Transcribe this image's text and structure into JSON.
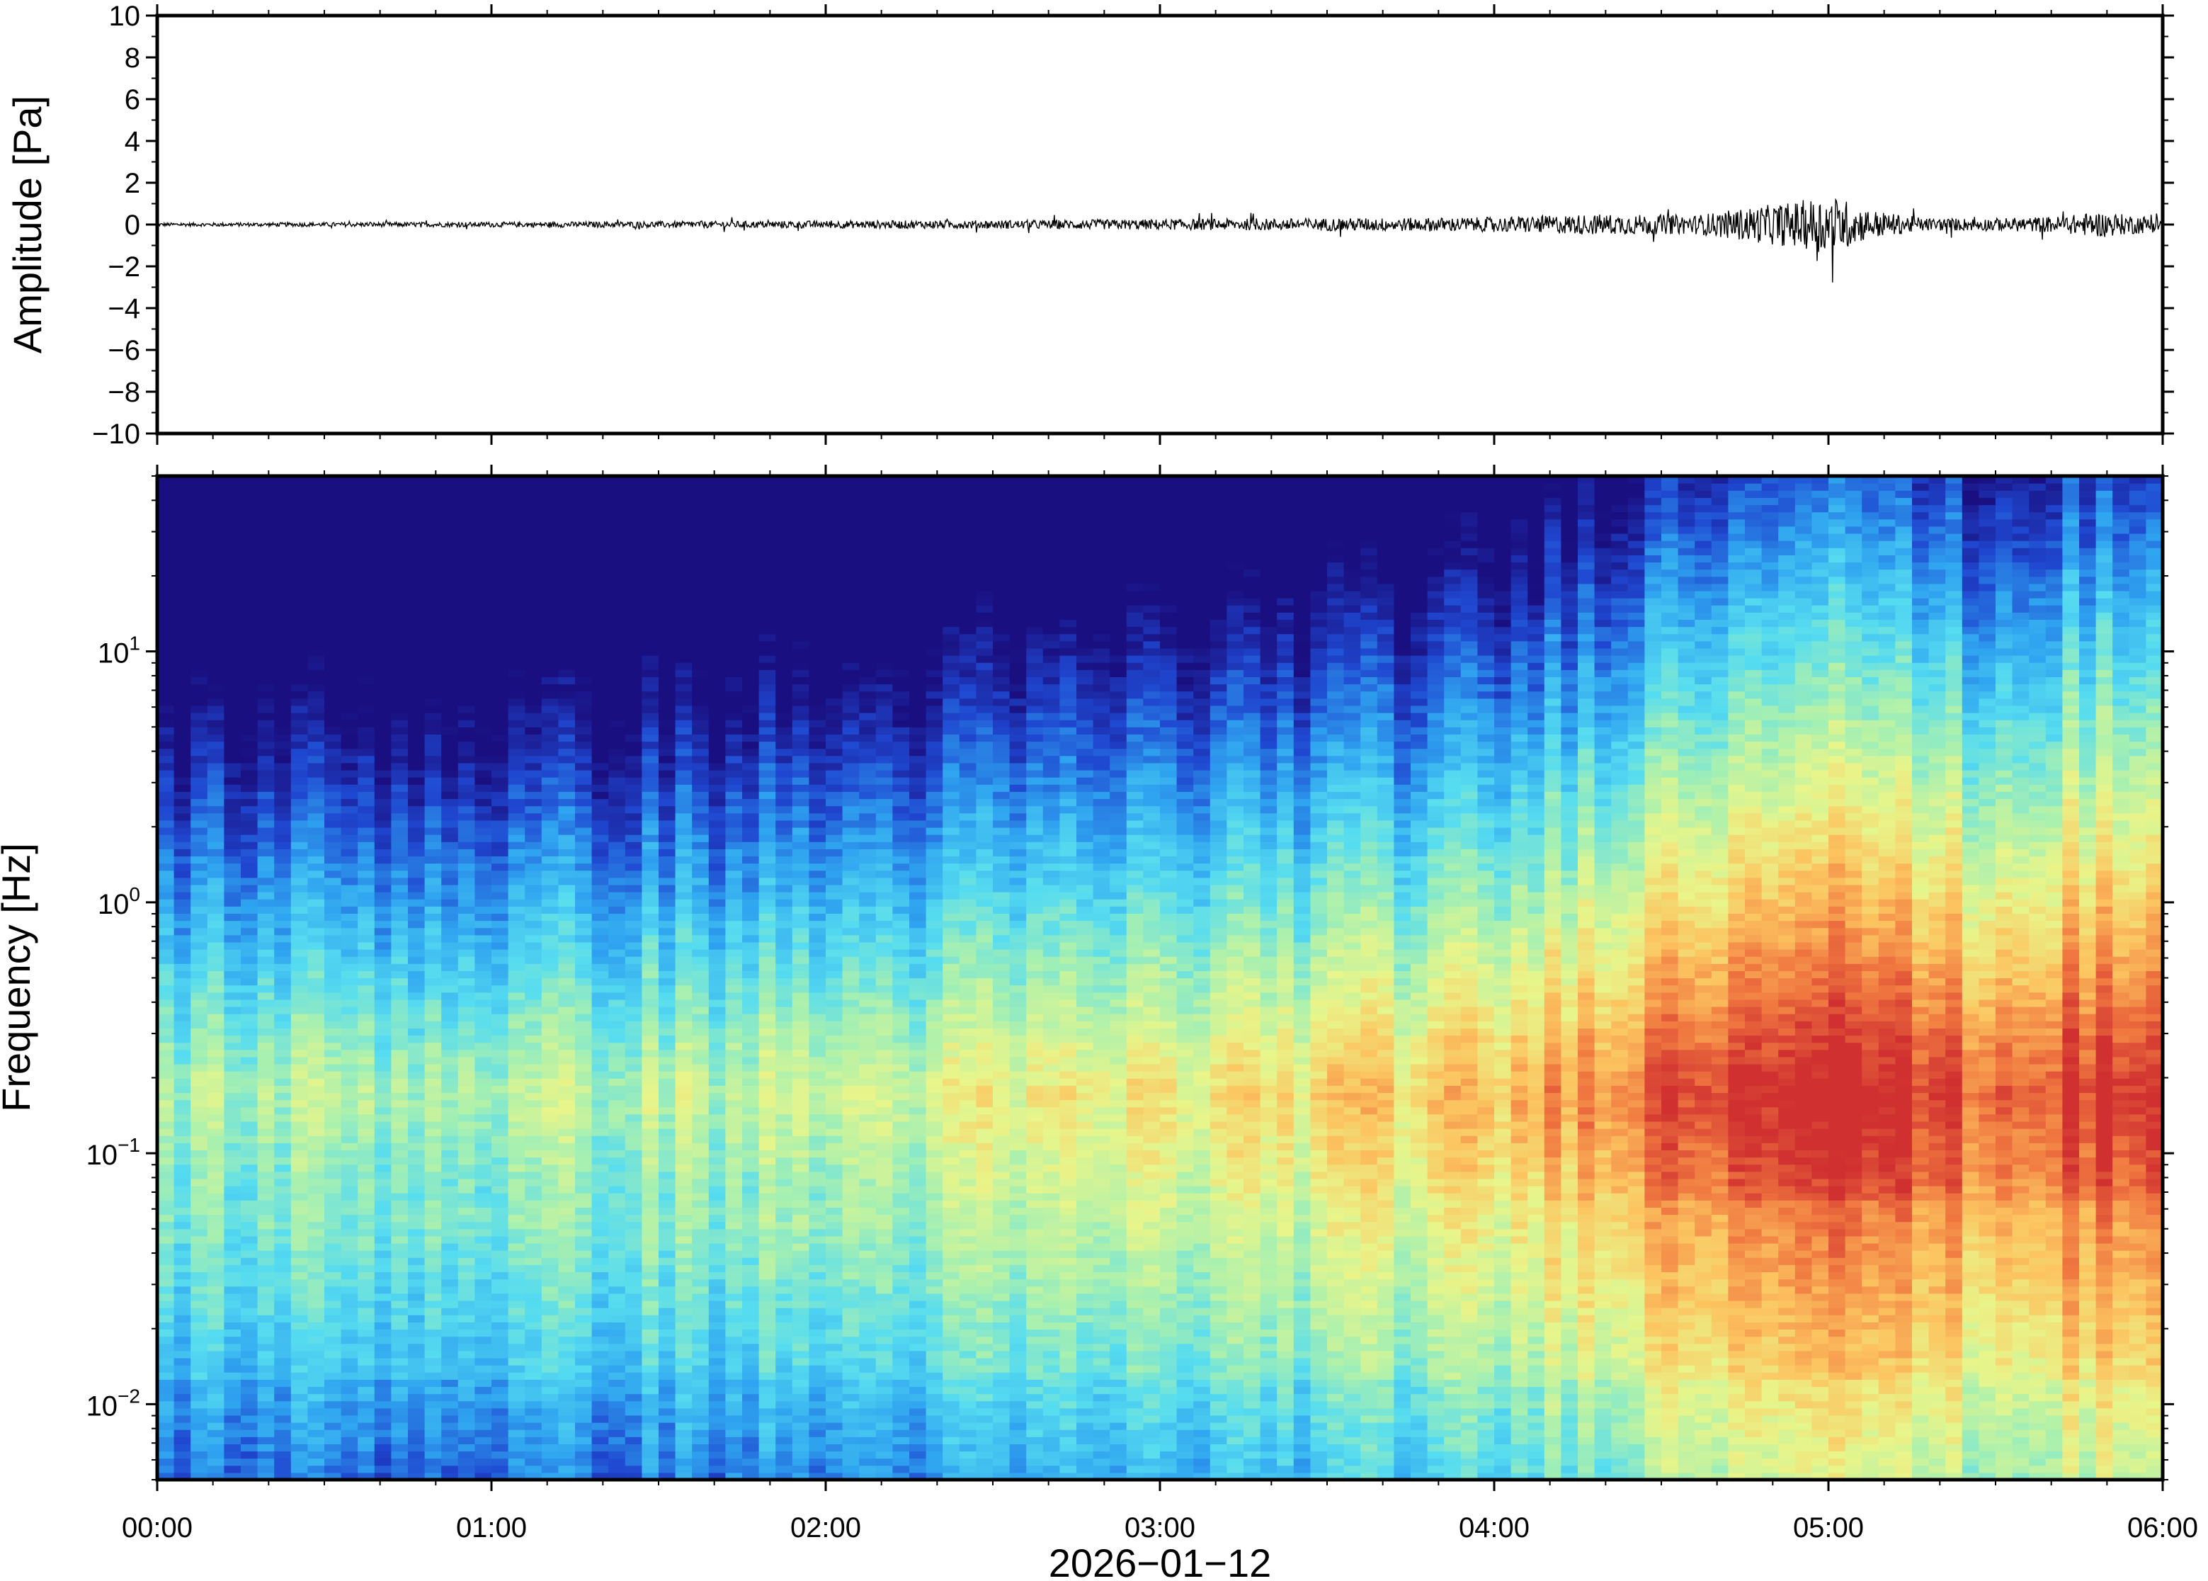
{
  "chart_data": [
    {
      "type": "line",
      "panel": "waveform",
      "ylabel": "Amplitude [Pa]",
      "ylim": [
        -10,
        10
      ],
      "yticks": [
        10,
        8,
        6,
        4,
        2,
        0,
        -2,
        -4,
        -6,
        -8,
        -10
      ],
      "ytick_labels": [
        "10",
        "8",
        "6",
        "4",
        "2",
        "0",
        "−2",
        "−4",
        "−6",
        "−8",
        "−10"
      ],
      "line_color": "#000000",
      "envelope": {
        "x_hours": [
          0.0,
          0.5,
          1.0,
          1.5,
          2.0,
          2.5,
          3.0,
          3.5,
          4.0,
          4.3,
          4.6,
          4.8,
          4.9,
          5.0,
          5.05,
          5.1,
          5.2,
          5.3,
          5.5,
          5.7,
          5.8,
          6.0
        ],
        "amplitude_pa": [
          0.08,
          0.1,
          0.12,
          0.15,
          0.18,
          0.2,
          0.25,
          0.3,
          0.35,
          0.5,
          0.45,
          0.9,
          1.1,
          1.4,
          1.2,
          0.8,
          0.5,
          0.3,
          0.3,
          0.4,
          0.6,
          0.35
        ]
      },
      "grid": false
    },
    {
      "type": "heatmap",
      "panel": "spectrogram",
      "ylabel": "Frequency [Hz]",
      "yscale": "log",
      "ylim": [
        0.005,
        50
      ],
      "yticks": [
        0.01,
        0.1,
        1,
        10
      ],
      "ytick_labels": [
        {
          "base": "10",
          "exp": "−2"
        },
        {
          "base": "10",
          "exp": "−1"
        },
        {
          "base": "10",
          "exp": "0"
        },
        {
          "base": "10",
          "exp": "1"
        }
      ],
      "xlabel": "2026−01−12",
      "xlim_hours": [
        0,
        6
      ],
      "xticks": [
        "00:00",
        "01:00",
        "02:00",
        "03:00",
        "04:00",
        "05:00",
        "06:00"
      ],
      "colormap": [
        "#1a0f80",
        "#1f47d0",
        "#2fa4f0",
        "#56dcf0",
        "#a8f0b0",
        "#e8f58a",
        "#fcc460",
        "#f07840",
        "#d03030"
      ],
      "column_time_bins": 120,
      "frequency_bins": 140,
      "description_levels": {
        "x_hours": [
          0.0,
          1.0,
          2.0,
          3.0,
          4.0,
          4.3,
          4.8,
          5.0,
          5.2,
          5.5,
          5.8,
          6.0
        ],
        "activity": [
          0.25,
          0.25,
          0.3,
          0.4,
          0.5,
          0.65,
          0.85,
          0.95,
          0.8,
          0.7,
          0.8,
          0.75
        ]
      },
      "grid": false
    }
  ]
}
